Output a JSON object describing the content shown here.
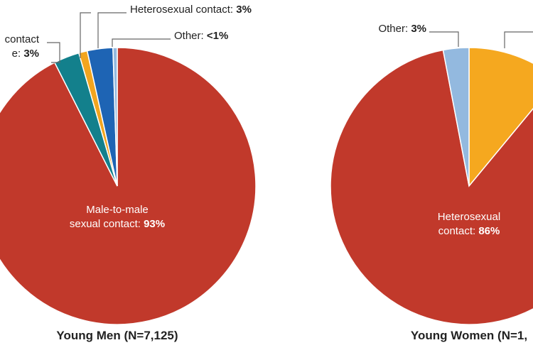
{
  "chart_data": [
    {
      "type": "pie",
      "title": "Young Men (N=7,125)",
      "categories": [
        [
          "Male-to-male",
          "sexual contact:"
        ],
        [
          "contact",
          "e:"
        ],
        null,
        [
          "Heterosexual contact:"
        ],
        [
          "Other:"
        ]
      ],
      "values": [
        93,
        3,
        1,
        3,
        0.5
      ],
      "value_labels": [
        "93%",
        "3%",
        null,
        "3%",
        "<1%"
      ],
      "colors": [
        "#c1392b",
        "#13808c",
        "#f2a51f",
        "#1e64b4",
        "#93b9df"
      ]
    },
    {
      "type": "pie",
      "title": "Young Women (N=1,",
      "categories": [
        null,
        [
          "Heterosexual",
          "contact:"
        ],
        [
          "Other:"
        ]
      ],
      "values": [
        11,
        86,
        3
      ],
      "value_labels": [
        null,
        "86%",
        "3%"
      ],
      "colors": [
        "#f5a81f",
        "#c1392b",
        "#93b9df"
      ]
    }
  ]
}
